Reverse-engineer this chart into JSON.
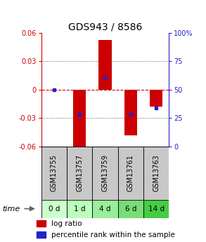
{
  "title": "GDS943 / 8586",
  "samples": [
    "GSM13755",
    "GSM13757",
    "GSM13759",
    "GSM13761",
    "GSM13763"
  ],
  "time_labels": [
    "0 d",
    "1 d",
    "4 d",
    "6 d",
    "14 d"
  ],
  "log_ratios": [
    0.0,
    -0.065,
    0.052,
    -0.048,
    -0.018
  ],
  "percentile_ranks": [
    50,
    28,
    60,
    28,
    34
  ],
  "ylim_left": [
    -0.06,
    0.06
  ],
  "ylim_right": [
    0,
    100
  ],
  "yticks_left": [
    -0.06,
    -0.03,
    0,
    0.03,
    0.06
  ],
  "yticks_right": [
    0,
    25,
    50,
    75,
    100
  ],
  "ytick_labels_right": [
    "0",
    "25",
    "50",
    "75",
    "100%"
  ],
  "bar_color": "#cc0000",
  "percentile_color": "#2222cc",
  "bar_width": 0.5,
  "grid_color": "#555555",
  "zero_line_color": "#cc0000",
  "sample_box_color": "#c8c8c8",
  "time_box_colors": [
    "#ccffcc",
    "#bbffbb",
    "#99ee99",
    "#77dd77",
    "#44cc44"
  ],
  "background_color": "#ffffff",
  "left_axis_color": "#cc0000",
  "right_axis_color": "#2222cc",
  "title_fontsize": 10,
  "tick_fontsize": 7,
  "label_fontsize": 7,
  "legend_fontsize": 7.5
}
